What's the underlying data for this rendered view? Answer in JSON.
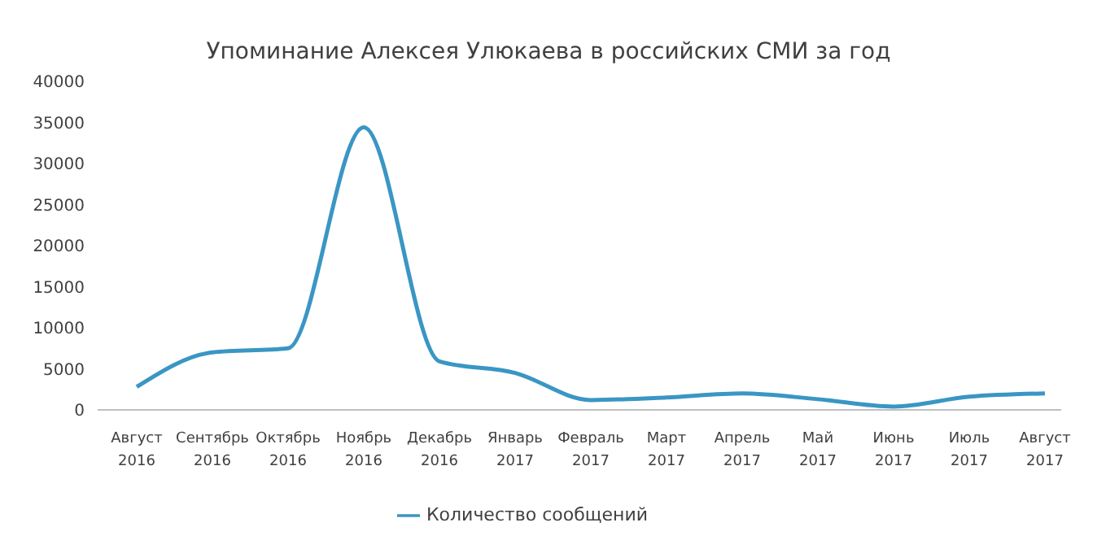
{
  "chart_data": {
    "type": "line",
    "title": "Упоминание Алексея Улюкаева в российских СМИ за год",
    "categories": [
      "Август 2016",
      "Сентябрь 2016",
      "Октябрь 2016",
      "Ноябрь 2016",
      "Декабрь 2016",
      "Январь 2017",
      "Февраль 2017",
      "Март 2017",
      "Апрель 2017",
      "Май 2017",
      "Июнь 2017",
      "Июль 2017",
      "Август 2017"
    ],
    "series": [
      {
        "name": "Количество сообщений",
        "color": "#3a96c4",
        "values": [
          2800,
          7000,
          7500,
          34400,
          5900,
          4500,
          1200,
          1500,
          2000,
          1300,
          400,
          1600,
          2000
        ]
      }
    ],
    "ylim": [
      0,
      40000
    ],
    "yticks": [
      0,
      5000,
      10000,
      15000,
      20000,
      25000,
      30000,
      35000,
      40000
    ],
    "grid": false,
    "legend": "bottom",
    "marker": "none",
    "line_style": "solid"
  }
}
